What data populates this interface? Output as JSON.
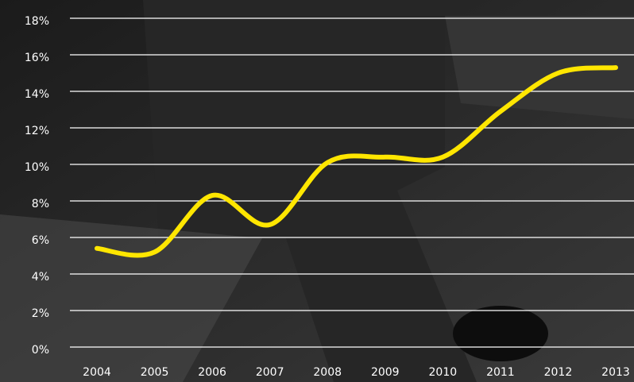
{
  "chart_data": {
    "type": "line",
    "categories": [
      "2004",
      "2005",
      "2006",
      "2007",
      "2008",
      "2009",
      "2010",
      "2011",
      "2012",
      "2013"
    ],
    "values": [
      5.4,
      5.2,
      8.3,
      6.7,
      10.1,
      10.4,
      10.4,
      12.9,
      15.0,
      15.3
    ],
    "color": "#ffe600",
    "ylim": [
      0,
      18
    ],
    "yticks": [
      {
        "value": 0,
        "label": "0%"
      },
      {
        "value": 2,
        "label": "2%"
      },
      {
        "value": 4,
        "label": "4%"
      },
      {
        "value": 6,
        "label": "6%"
      },
      {
        "value": 8,
        "label": "8%"
      },
      {
        "value": 10,
        "label": "10%"
      },
      {
        "value": 12,
        "label": "12%"
      },
      {
        "value": 14,
        "label": "14%"
      },
      {
        "value": 16,
        "label": "16%"
      },
      {
        "value": 18,
        "label": "18%"
      }
    ],
    "grid": true
  }
}
